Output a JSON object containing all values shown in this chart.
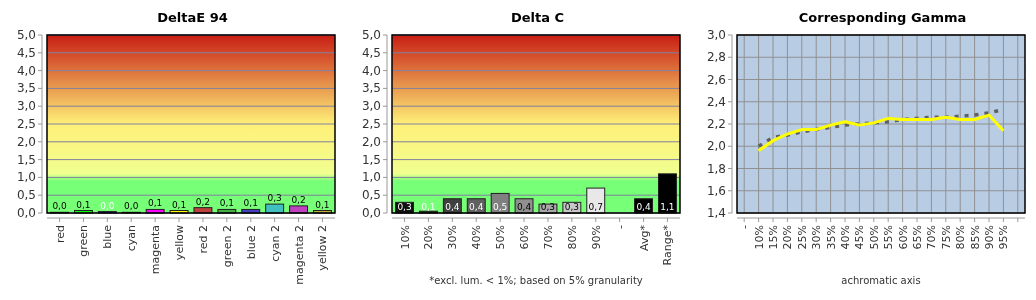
{
  "chart_data": [
    {
      "type": "bar",
      "title": "DeltaE 94",
      "categories": [
        "red",
        "green",
        "blue",
        "cyan",
        "magenta",
        "yellow",
        "red 2",
        "green 2",
        "blue 2",
        "cyan 2",
        "magenta 2",
        "yellow 2"
      ],
      "values": [
        0.02,
        0.07,
        0.04,
        0.02,
        0.1,
        0.07,
        0.15,
        0.1,
        0.1,
        0.25,
        0.2,
        0.07
      ],
      "colors": [
        "#ff0000",
        "#00ff00",
        "#0000ff",
        "#00ffff",
        "#ff00ff",
        "#ffff00",
        "#c04040",
        "#40b040",
        "#4040c0",
        "#40c0c0",
        "#c040c0",
        "#c0b040"
      ],
      "value_labels": [
        "0,0",
        "0,1",
        "0,0",
        "0,0",
        "0,1",
        "0,1",
        "0,2",
        "0,1",
        "0,1",
        "0,3",
        "0,2",
        "0,1"
      ],
      "ylim": [
        0,
        5
      ],
      "yticks": [
        {
          "value": 0,
          "label": "0,0"
        },
        {
          "value": 0.5,
          "label": "0,5"
        },
        {
          "value": 1,
          "label": "1,0"
        },
        {
          "value": 1.5,
          "label": "1,5"
        },
        {
          "value": 2,
          "label": "2,0"
        },
        {
          "value": 2.5,
          "label": "2,5"
        },
        {
          "value": 3,
          "label": "3,0"
        },
        {
          "value": 3.5,
          "label": "3,5"
        },
        {
          "value": 4,
          "label": "4,0"
        },
        {
          "value": 4.5,
          "label": "4,5"
        },
        {
          "value": 5,
          "label": "5,0"
        }
      ],
      "grid": "y"
    },
    {
      "type": "bar",
      "title": "Delta C",
      "xlabel": "*excl. lum. < 1%; based on 5% granularity",
      "categories": [
        "10%",
        "20%",
        "30%",
        "40%",
        "50%",
        "60%",
        "70%",
        "80%",
        "90%",
        "-",
        "Avg*",
        "Range*"
      ],
      "values": [
        0.3,
        0.05,
        0.4,
        0.4,
        0.55,
        0.4,
        0.25,
        0.3,
        0.7,
        null,
        0.4,
        1.1
      ],
      "colors": [
        "#101010",
        "#202020",
        "#404040",
        "#606060",
        "#808080",
        "#909090",
        "#a8a8a8",
        "#c8c8c8",
        "#e8e8e8",
        null,
        "#000000",
        "#000000"
      ],
      "value_labels": [
        "0,3",
        "0,1",
        "0,4",
        "0,4",
        "0,5",
        "0,4",
        "0,3",
        "0,3",
        "0,7",
        null,
        "0,4",
        "1,1"
      ],
      "ylim": [
        0,
        5
      ],
      "yticks": [
        {
          "value": 0,
          "label": "0,0"
        },
        {
          "value": 0.5,
          "label": "0,5"
        },
        {
          "value": 1,
          "label": "1,0"
        },
        {
          "value": 1.5,
          "label": "1,5"
        },
        {
          "value": 2,
          "label": "2,0"
        },
        {
          "value": 2.5,
          "label": "2,5"
        },
        {
          "value": 3,
          "label": "3,0"
        },
        {
          "value": 3.5,
          "label": "3,5"
        },
        {
          "value": 4,
          "label": "4,0"
        },
        {
          "value": 4.5,
          "label": "4,5"
        },
        {
          "value": 5,
          "label": "5,0"
        }
      ],
      "grid": "y"
    },
    {
      "type": "line",
      "title": "Corresponding Gamma",
      "xlabel": "achromatic axis",
      "categories": [
        "-",
        "10%",
        "15%",
        "20%",
        "25%",
        "30%",
        "35%",
        "40%",
        "45%",
        "50%",
        "55%",
        "60%",
        "65%",
        "70%",
        "75%",
        "80%",
        "85%",
        "90%",
        "95%",
        null
      ],
      "series": [
        {
          "color": "#606060",
          "line_style": "dotted",
          "values": [
            null,
            2.0,
            2.08,
            2.1,
            2.13,
            2.15,
            2.17,
            2.19,
            2.2,
            2.21,
            2.22,
            2.24,
            2.25,
            2.26,
            2.26,
            2.27,
            2.28,
            2.3,
            2.33,
            null
          ]
        },
        {
          "color": "#ffff00",
          "line_style": "solid",
          "values": [
            null,
            1.96,
            2.05,
            2.11,
            2.15,
            2.15,
            2.19,
            2.22,
            2.19,
            2.21,
            2.25,
            2.24,
            2.24,
            2.24,
            2.26,
            2.24,
            2.24,
            2.28,
            2.14,
            null
          ]
        }
      ],
      "ylim": [
        1.4,
        3.0
      ],
      "yticks": [
        {
          "value": 1.4,
          "label": "1,4"
        },
        {
          "value": 1.6,
          "label": "1,6"
        },
        {
          "value": 1.8,
          "label": "1,8"
        },
        {
          "value": 2.0,
          "label": "2,0"
        },
        {
          "value": 2.2,
          "label": "2,2"
        },
        {
          "value": 2.4,
          "label": "2,4"
        },
        {
          "value": 2.6,
          "label": "2,6"
        },
        {
          "value": 2.8,
          "label": "2,8"
        },
        {
          "value": 3.0,
          "label": "3,0"
        }
      ],
      "grid": true,
      "marker": "none"
    }
  ]
}
